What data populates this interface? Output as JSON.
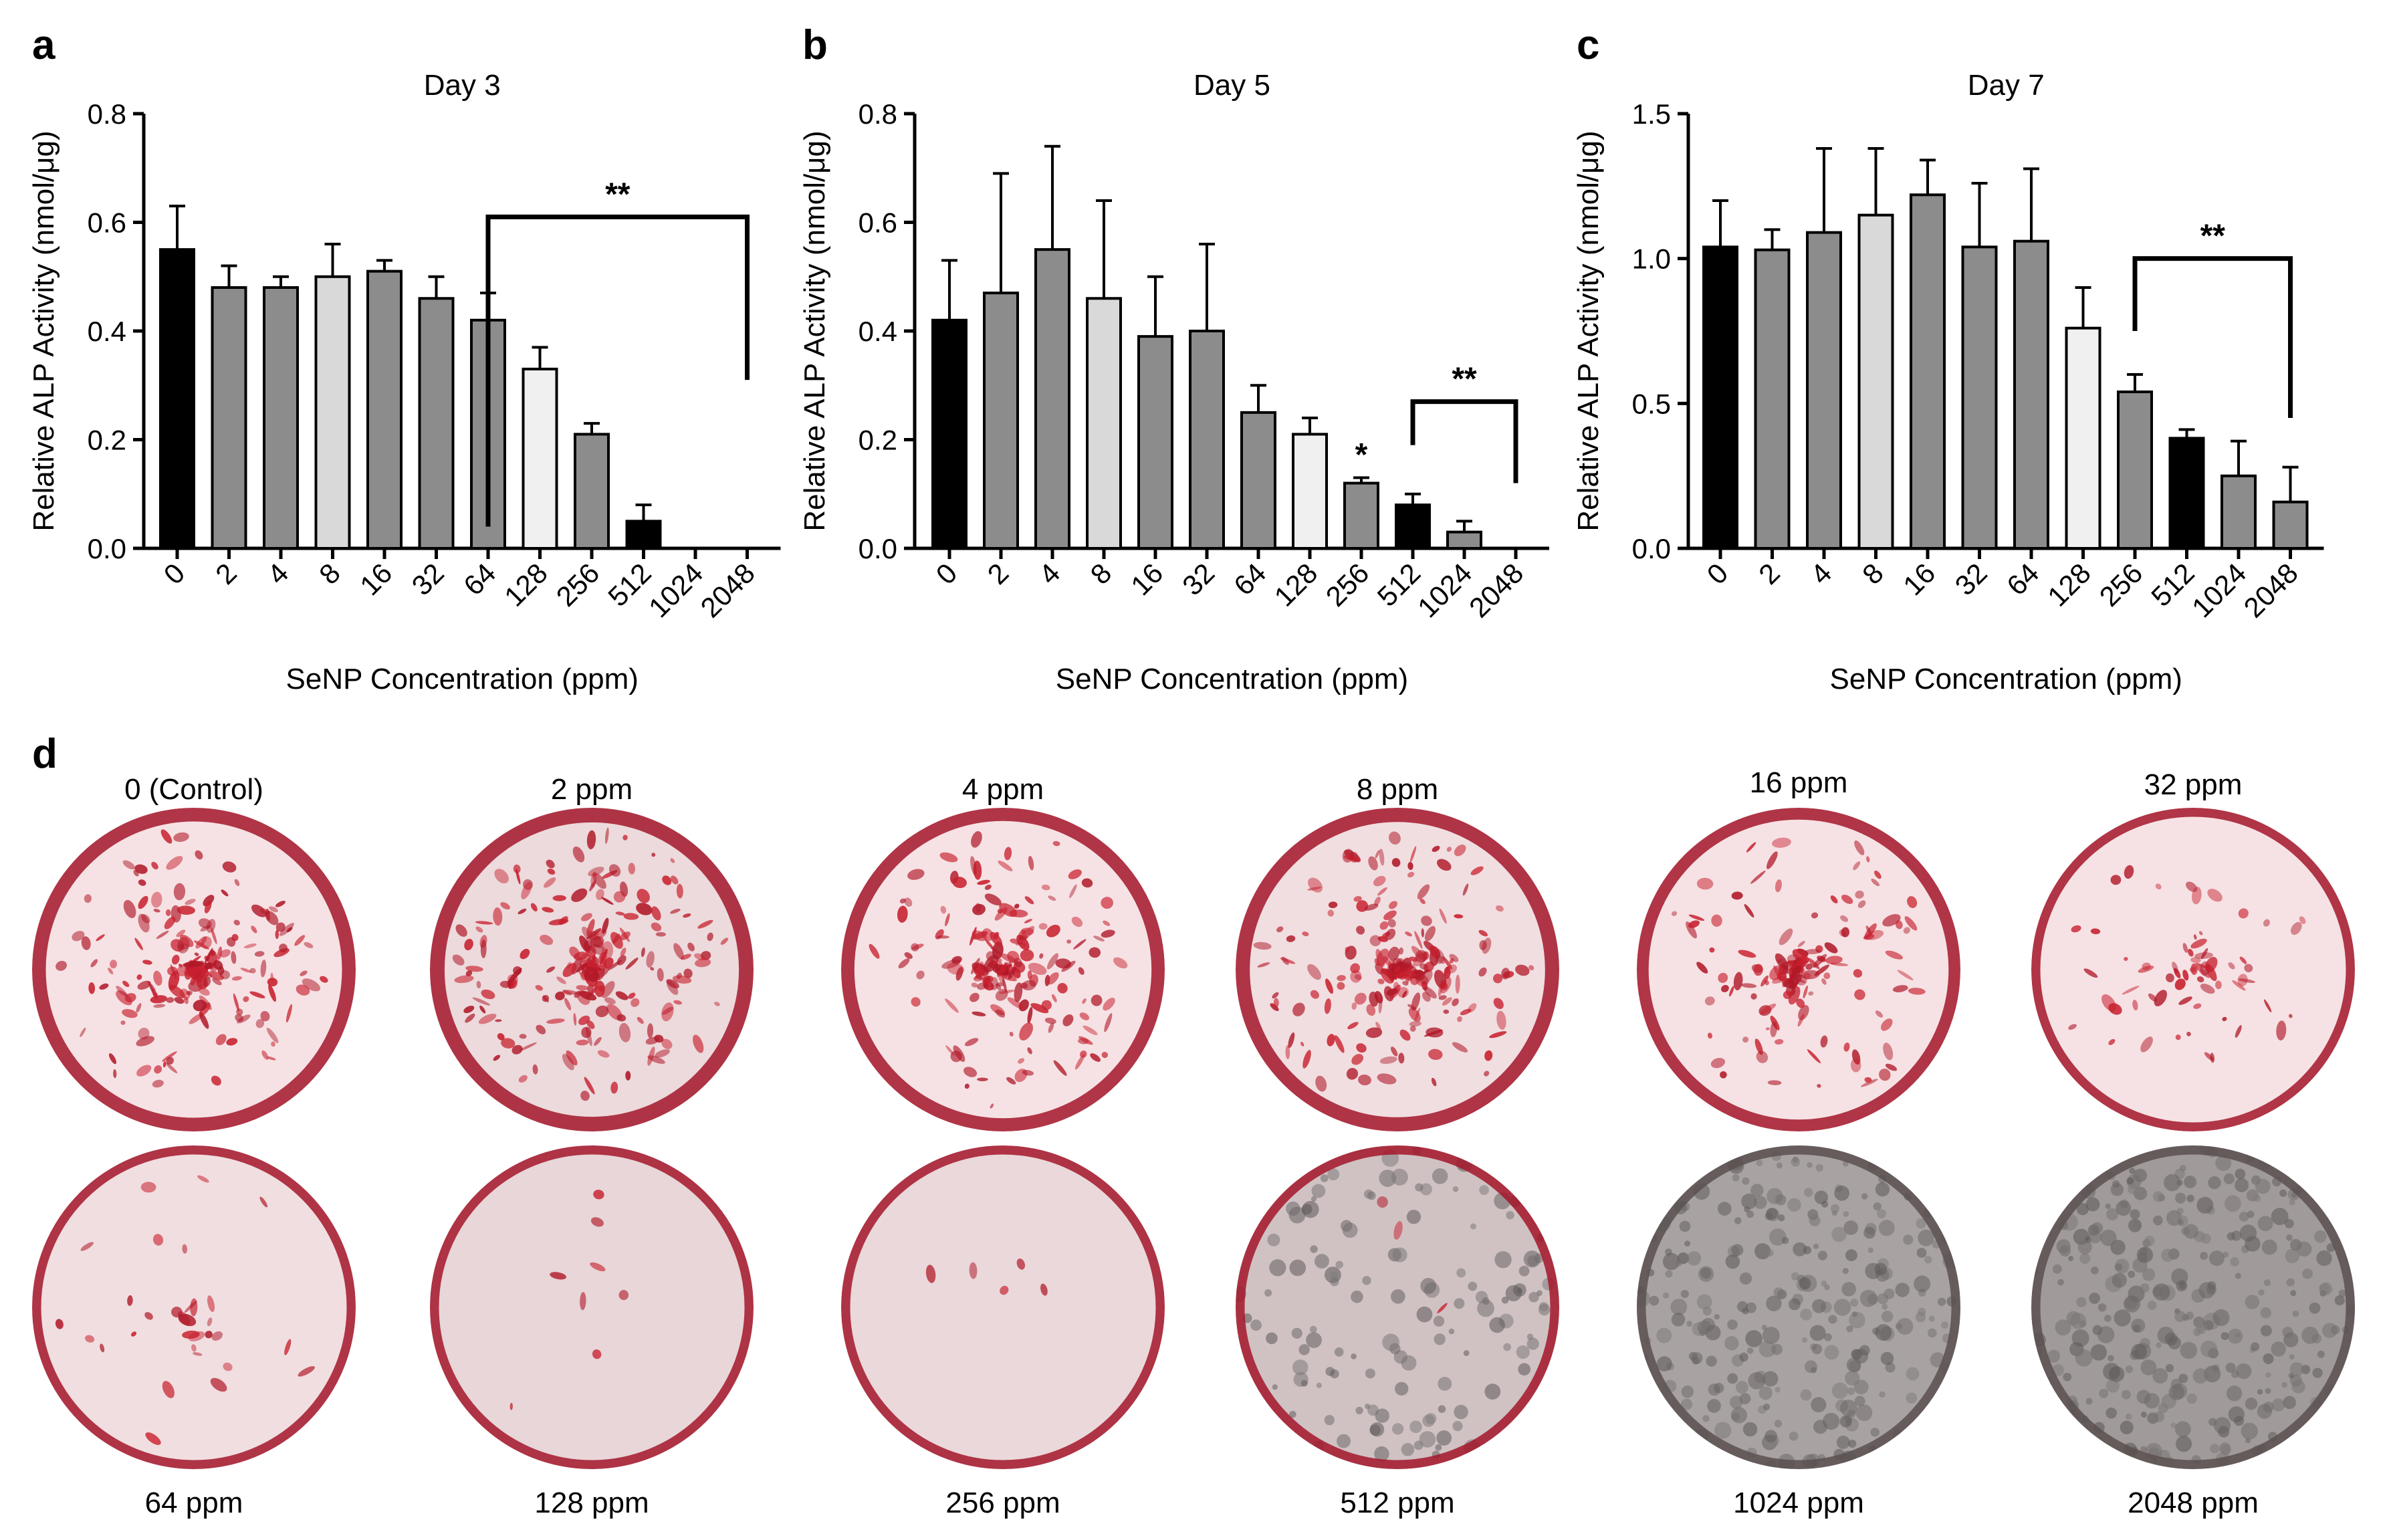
{
  "panels": {
    "a": {
      "letter": "a",
      "title": "Day 3"
    },
    "b": {
      "letter": "b",
      "title": "Day 5"
    },
    "c": {
      "letter": "c",
      "title": "Day 7"
    },
    "d": {
      "letter": "d"
    }
  },
  "chart_data": [
    {
      "type": "bar",
      "title": "Day 3",
      "xlabel": "SeNP Concentration (ppm)",
      "ylabel": "Relative ALP Activity (nmol/μg)",
      "ylim": [
        0,
        0.8
      ],
      "yticks": [
        "0.0",
        "0.2",
        "0.4",
        "0.6",
        "0.8"
      ],
      "categories": [
        "0",
        "2",
        "4",
        "8",
        "16",
        "32",
        "64",
        "128",
        "256",
        "512",
        "1024",
        "2048"
      ],
      "values": [
        0.55,
        0.48,
        0.48,
        0.5,
        0.51,
        0.46,
        0.42,
        0.33,
        0.21,
        0.05,
        0.0,
        0.0
      ],
      "errors": [
        0.08,
        0.04,
        0.02,
        0.06,
        0.02,
        0.04,
        0.05,
        0.04,
        0.02,
        0.03,
        0.0,
        0.0
      ],
      "bar_colors": [
        "#000000",
        "#8c8c8c",
        "#8c8c8c",
        "#d9d9d9",
        "#8c8c8c",
        "#8c8c8c",
        "#8c8c8c",
        "#f0f0f0",
        "#8c8c8c",
        "#000000",
        "#8c8c8c",
        "#8c8c8c"
      ],
      "annotations": [
        {
          "text": "**",
          "bracket_from": "64",
          "bracket_to": "2048",
          "level": 0.61,
          "left_leg": 0.04,
          "right_leg": 0.31
        }
      ]
    },
    {
      "type": "bar",
      "title": "Day 5",
      "xlabel": "SeNP Concentration (ppm)",
      "ylabel": "Relative ALP Activity (nmol/μg)",
      "ylim": [
        0,
        0.8
      ],
      "yticks": [
        "0.0",
        "0.2",
        "0.4",
        "0.6",
        "0.8"
      ],
      "categories": [
        "0",
        "2",
        "4",
        "8",
        "16",
        "32",
        "64",
        "128",
        "256",
        "512",
        "1024",
        "2048"
      ],
      "values": [
        0.42,
        0.47,
        0.55,
        0.46,
        0.39,
        0.4,
        0.25,
        0.21,
        0.12,
        0.08,
        0.03,
        0.0
      ],
      "errors": [
        0.11,
        0.22,
        0.19,
        0.18,
        0.11,
        0.16,
        0.05,
        0.03,
        0.01,
        0.02,
        0.02,
        0.0
      ],
      "bar_colors": [
        "#000000",
        "#8c8c8c",
        "#8c8c8c",
        "#d9d9d9",
        "#8c8c8c",
        "#8c8c8c",
        "#8c8c8c",
        "#f0f0f0",
        "#8c8c8c",
        "#000000",
        "#8c8c8c",
        "#8c8c8c"
      ],
      "annotations": [
        {
          "text": "*",
          "above": "256",
          "level": 0.15
        },
        {
          "text": "**",
          "bracket_from": "512",
          "bracket_to": "2048",
          "level": 0.27,
          "left_leg": 0.19,
          "right_leg": 0.12
        }
      ]
    },
    {
      "type": "bar",
      "title": "Day 7",
      "xlabel": "SeNP Concentration (ppm)",
      "ylabel": "Relative ALP Activity (nmol/μg)",
      "ylim": [
        0,
        1.5
      ],
      "yticks": [
        "0.0",
        "0.5",
        "1.0",
        "1.5"
      ],
      "categories": [
        "0",
        "2",
        "4",
        "8",
        "16",
        "32",
        "64",
        "128",
        "256",
        "512",
        "1024",
        "2048"
      ],
      "values": [
        1.04,
        1.03,
        1.09,
        1.15,
        1.22,
        1.04,
        1.06,
        0.76,
        0.54,
        0.38,
        0.25,
        0.16
      ],
      "errors": [
        0.16,
        0.07,
        0.29,
        0.23,
        0.12,
        0.22,
        0.25,
        0.14,
        0.06,
        0.03,
        0.12,
        0.12
      ],
      "bar_colors": [
        "#000000",
        "#8c8c8c",
        "#8c8c8c",
        "#d9d9d9",
        "#8c8c8c",
        "#8c8c8c",
        "#8c8c8c",
        "#f0f0f0",
        "#8c8c8c",
        "#000000",
        "#8c8c8c",
        "#8c8c8c"
      ],
      "annotations": [
        {
          "text": "**",
          "bracket_from": "256",
          "bracket_to": "2048",
          "level": 1.0,
          "left_leg": 0.75,
          "right_leg": 0.45
        }
      ]
    }
  ],
  "wells": [
    {
      "label": "0 (Control)",
      "stain": 0.75,
      "gray": 0.0
    },
    {
      "label": "2 ppm",
      "stain": 0.85,
      "gray": 0.1
    },
    {
      "label": "4 ppm",
      "stain": 0.7,
      "gray": 0.0
    },
    {
      "label": "8 ppm",
      "stain": 0.8,
      "gray": 0.05
    },
    {
      "label": "16 ppm",
      "stain": 0.55,
      "gray": 0.0
    },
    {
      "label": "32 ppm",
      "stain": 0.25,
      "gray": 0.0
    },
    {
      "label": "64 ppm",
      "stain": 0.12,
      "gray": 0.05
    },
    {
      "label": "128 ppm",
      "stain": 0.03,
      "gray": 0.15
    },
    {
      "label": "256 ppm",
      "stain": 0.02,
      "gray": 0.12
    },
    {
      "label": "512 ppm",
      "stain": 0.01,
      "gray": 0.4
    },
    {
      "label": "1024 ppm",
      "stain": 0.0,
      "gray": 0.8
    },
    {
      "label": "2048 ppm",
      "stain": 0.0,
      "gray": 0.9
    }
  ]
}
